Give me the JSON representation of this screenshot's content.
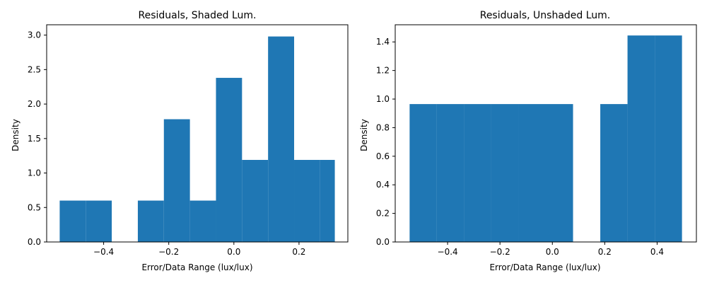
{
  "chart_data": [
    {
      "type": "bar",
      "title": "Residuals, Shaded Lum.",
      "xlabel": "Error/Data Range (lux/lux)",
      "ylabel": "Density",
      "xlim": [
        -0.575,
        0.35
      ],
      "ylim": [
        0,
        3.15
      ],
      "xticks": [
        -0.4,
        -0.2,
        0.0,
        0.2
      ],
      "xtick_labels": [
        "−0.4",
        "−0.2",
        "0.0",
        "0.2"
      ],
      "yticks": [
        0.0,
        0.5,
        1.0,
        1.5,
        2.0,
        2.5,
        3.0
      ],
      "ytick_labels": [
        "0.0",
        "0.5",
        "1.0",
        "1.5",
        "2.0",
        "2.5",
        "3.0"
      ],
      "bin_edges": [
        -0.54,
        -0.458,
        -0.376,
        -0.294,
        -0.212,
        -0.13,
        -0.048,
        0.034,
        0.116,
        0.198,
        0.28,
        0.362
      ],
      "bins": [
        {
          "x0": -0.535,
          "x1": -0.455,
          "density": 0.6
        },
        {
          "x0": -0.455,
          "x1": -0.375,
          "density": 0.6
        },
        {
          "x0": -0.375,
          "x1": -0.295,
          "density": 0.0
        },
        {
          "x0": -0.295,
          "x1": -0.215,
          "density": 0.6
        },
        {
          "x0": -0.215,
          "x1": -0.135,
          "density": 1.78
        },
        {
          "x0": -0.135,
          "x1": -0.055,
          "density": 0.6
        },
        {
          "x0": -0.055,
          "x1": 0.025,
          "density": 2.38
        },
        {
          "x0": 0.025,
          "x1": 0.105,
          "density": 1.19
        },
        {
          "x0": 0.105,
          "x1": 0.185,
          "density": 2.98
        },
        {
          "x0": 0.185,
          "x1": 0.265,
          "density": 1.19
        },
        {
          "x0": 0.265,
          "x1": 0.31,
          "density": 1.19
        }
      ],
      "grid": false,
      "bar_color": "#1f77b4"
    },
    {
      "type": "bar",
      "title": "Residuals, Unshaded Lum.",
      "xlabel": "Error/Data Range (lux/lux)",
      "ylabel": "Density",
      "xlim": [
        -0.6,
        0.55
      ],
      "ylim": [
        0,
        1.52
      ],
      "xticks": [
        -0.4,
        -0.2,
        0.0,
        0.2,
        0.4
      ],
      "xtick_labels": [
        "−0.4",
        "−0.2",
        "0.0",
        "0.2",
        "0.4"
      ],
      "yticks": [
        0.0,
        0.2,
        0.4,
        0.6,
        0.8,
        1.0,
        1.2,
        1.4
      ],
      "ytick_labels": [
        "0.0",
        "0.2",
        "0.4",
        "0.6",
        "0.8",
        "1.0",
        "1.2",
        "1.4"
      ],
      "bins": [
        {
          "x0": -0.545,
          "x1": -0.441,
          "density": 0.965
        },
        {
          "x0": -0.441,
          "x1": -0.337,
          "density": 0.965
        },
        {
          "x0": -0.337,
          "x1": -0.233,
          "density": 0.965
        },
        {
          "x0": -0.233,
          "x1": -0.129,
          "density": 0.965
        },
        {
          "x0": -0.129,
          "x1": -0.025,
          "density": 0.965
        },
        {
          "x0": -0.025,
          "x1": 0.079,
          "density": 0.965
        },
        {
          "x0": 0.079,
          "x1": 0.183,
          "density": 0.0
        },
        {
          "x0": 0.183,
          "x1": 0.287,
          "density": 0.965
        },
        {
          "x0": 0.287,
          "x1": 0.391,
          "density": 1.445
        },
        {
          "x0": 0.391,
          "x1": 0.495,
          "density": 1.445
        }
      ],
      "grid": false,
      "bar_color": "#1f77b4"
    }
  ]
}
